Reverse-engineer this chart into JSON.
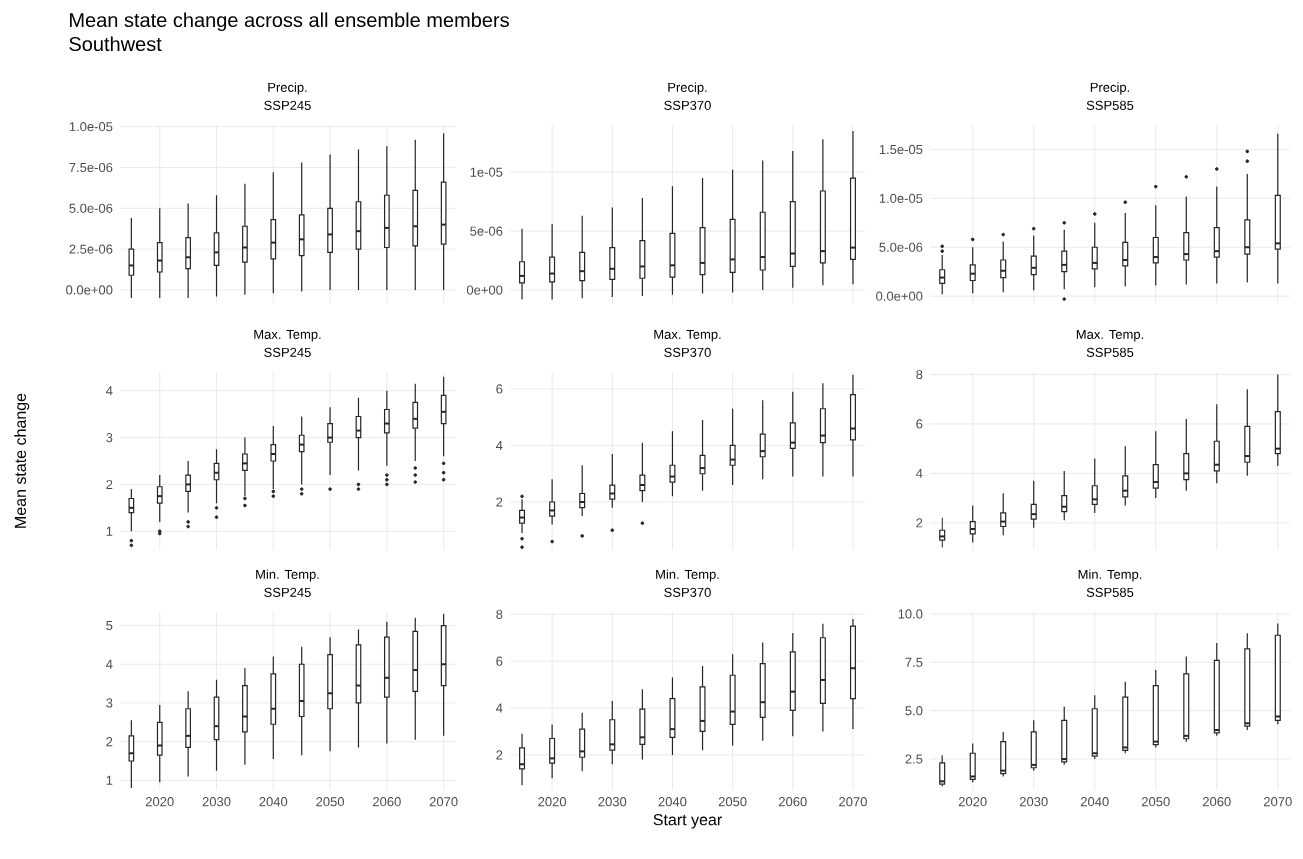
{
  "chart_data": [
    {
      "type": "other",
      "title": "Mean state change across all ensemble members",
      "subtitle": "Southwest"
    },
    {
      "type": "box",
      "title": "Precip.",
      "subtitle": "SSP245",
      "grid": true,
      "tick_labels": "y",
      "x": [
        2015,
        2020,
        2025,
        2030,
        2035,
        2040,
        2045,
        2050,
        2055,
        2060,
        2065,
        2070
      ],
      "xlim": [
        2013,
        2072
      ],
      "xticks": [
        2020,
        2030,
        2040,
        2050,
        2060,
        2070
      ],
      "ylim": [
        -8e-07,
        1.01e-05
      ],
      "yticks": [
        {
          "value": 0,
          "label": "0.0e+00"
        },
        {
          "value": 2.5e-06,
          "label": "2.5e-06"
        },
        {
          "value": 5e-06,
          "label": "5.0e-06"
        },
        {
          "value": 7.5e-06,
          "label": "7.5e-06"
        },
        {
          "value": 1e-05,
          "label": "1.0e-05"
        }
      ],
      "boxes": [
        {
          "low": -5e-07,
          "q1": 9e-07,
          "median": 1.5e-06,
          "q3": 2.5e-06,
          "high": 4.4e-06
        },
        {
          "low": -5e-07,
          "q1": 1.1e-06,
          "median": 1.8e-06,
          "q3": 2.9e-06,
          "high": 5e-06
        },
        {
          "low": -5e-07,
          "q1": 1.3e-06,
          "median": 2e-06,
          "q3": 3.2e-06,
          "high": 5.3e-06
        },
        {
          "low": -4e-07,
          "q1": 1.5e-06,
          "median": 2.3e-06,
          "q3": 3.5e-06,
          "high": 5.8e-06
        },
        {
          "low": -3e-07,
          "q1": 1.7e-06,
          "median": 2.6e-06,
          "q3": 3.9e-06,
          "high": 6.5e-06
        },
        {
          "low": -2e-07,
          "q1": 1.9e-06,
          "median": 2.9e-06,
          "q3": 4.3e-06,
          "high": 7.2e-06
        },
        {
          "low": -1e-07,
          "q1": 2.1e-06,
          "median": 3.1e-06,
          "q3": 4.6e-06,
          "high": 7.8e-06
        },
        {
          "low": 0,
          "q1": 2.3e-06,
          "median": 3.4e-06,
          "q3": 5e-06,
          "high": 8.3e-06
        },
        {
          "low": 0,
          "q1": 2.5e-06,
          "median": 3.6e-06,
          "q3": 5.4e-06,
          "high": 8.6e-06
        },
        {
          "low": 0,
          "q1": 2.6e-06,
          "median": 3.8e-06,
          "q3": 5.8e-06,
          "high": 8.8e-06
        },
        {
          "low": 0,
          "q1": 2.7e-06,
          "median": 3.9e-06,
          "q3": 6.1e-06,
          "high": 9.2e-06
        },
        {
          "low": 0,
          "q1": 2.8e-06,
          "median": 4e-06,
          "q3": 6.6e-06,
          "high": 9.6e-06
        }
      ]
    },
    {
      "type": "box",
      "title": "Precip.",
      "subtitle": "SSP370",
      "grid": true,
      "tick_labels": "y",
      "x": [
        2015,
        2020,
        2025,
        2030,
        2035,
        2040,
        2045,
        2050,
        2055,
        2060,
        2065,
        2070
      ],
      "xlim": [
        2013,
        2072
      ],
      "xticks": [
        2020,
        2030,
        2040,
        2050,
        2060,
        2070
      ],
      "ylim": [
        -1.1e-06,
        1.4e-05
      ],
      "yticks": [
        {
          "value": 0,
          "label": "0e+00"
        },
        {
          "value": 5e-06,
          "label": "5e-06"
        },
        {
          "value": 1e-05,
          "label": "1e-05"
        }
      ],
      "boxes": [
        {
          "low": -8e-07,
          "q1": 6e-07,
          "median": 1.2e-06,
          "q3": 2.4e-06,
          "high": 5.2e-06
        },
        {
          "low": -8e-07,
          "q1": 7e-07,
          "median": 1.4e-06,
          "q3": 2.8e-06,
          "high": 5.6e-06
        },
        {
          "low": -7e-07,
          "q1": 8e-07,
          "median": 1.6e-06,
          "q3": 3.2e-06,
          "high": 6.3e-06
        },
        {
          "low": -6e-07,
          "q1": 9e-07,
          "median": 1.8e-06,
          "q3": 3.6e-06,
          "high": 7e-06
        },
        {
          "low": -5e-07,
          "q1": 1e-06,
          "median": 2e-06,
          "q3": 4.2e-06,
          "high": 7.8e-06
        },
        {
          "low": -4e-07,
          "q1": 1.1e-06,
          "median": 2.1e-06,
          "q3": 4.8e-06,
          "high": 8.8e-06
        },
        {
          "low": -3e-07,
          "q1": 1.3e-06,
          "median": 2.3e-06,
          "q3": 5.3e-06,
          "high": 9.5e-06
        },
        {
          "low": -2e-07,
          "q1": 1.5e-06,
          "median": 2.6e-06,
          "q3": 6e-06,
          "high": 1.02e-05
        },
        {
          "low": 0,
          "q1": 1.7e-06,
          "median": 2.8e-06,
          "q3": 6.6e-06,
          "high": 1.1e-05
        },
        {
          "low": 2e-07,
          "q1": 2e-06,
          "median": 3.1e-06,
          "q3": 7.5e-06,
          "high": 1.18e-05
        },
        {
          "low": 4e-07,
          "q1": 2.3e-06,
          "median": 3.3e-06,
          "q3": 8.4e-06,
          "high": 1.28e-05
        },
        {
          "low": 5e-07,
          "q1": 2.6e-06,
          "median": 3.6e-06,
          "q3": 9.5e-06,
          "high": 1.35e-05
        }
      ]
    },
    {
      "type": "box",
      "title": "Precip.",
      "subtitle": "SSP585",
      "grid": true,
      "tick_labels": "y",
      "x": [
        2015,
        2020,
        2025,
        2030,
        2035,
        2040,
        2045,
        2050,
        2055,
        2060,
        2065,
        2070
      ],
      "xlim": [
        2013,
        2072
      ],
      "xticks": [
        2020,
        2030,
        2040,
        2050,
        2060,
        2070
      ],
      "ylim": [
        -7e-07,
        1.75e-05
      ],
      "yticks": [
        {
          "value": 0,
          "label": "0.0e+00"
        },
        {
          "value": 5e-06,
          "label": "5.0e-06"
        },
        {
          "value": 1e-05,
          "label": "1.0e-05"
        },
        {
          "value": 1.5e-05,
          "label": "1.5e-05"
        }
      ],
      "boxes": [
        {
          "low": 2e-07,
          "q1": 1.3e-06,
          "median": 1.9e-06,
          "q3": 2.7e-06,
          "high": 4.2e-06,
          "outliers": [
            4.6e-06,
            5.1e-06
          ]
        },
        {
          "low": 3e-07,
          "q1": 1.6e-06,
          "median": 2.3e-06,
          "q3": 3.2e-06,
          "high": 5e-06,
          "outliers": [
            5.8e-06
          ]
        },
        {
          "low": 4e-07,
          "q1": 1.9e-06,
          "median": 2.6e-06,
          "q3": 3.7e-06,
          "high": 5.6e-06,
          "outliers": [
            6.3e-06
          ]
        },
        {
          "low": 6e-07,
          "q1": 2.2e-06,
          "median": 2.9e-06,
          "q3": 4.1e-06,
          "high": 6.2e-06,
          "outliers": [
            6.9e-06
          ]
        },
        {
          "low": 7e-07,
          "q1": 2.5e-06,
          "median": 3.2e-06,
          "q3": 4.6e-06,
          "high": 6.8e-06,
          "outliers": [
            -3e-07,
            7.5e-06
          ]
        },
        {
          "low": 9e-07,
          "q1": 2.8e-06,
          "median": 3.4e-06,
          "q3": 5e-06,
          "high": 7.5e-06,
          "outliers": [
            8.4e-06
          ]
        },
        {
          "low": 1e-06,
          "q1": 3.1e-06,
          "median": 3.7e-06,
          "q3": 5.5e-06,
          "high": 8.5e-06,
          "outliers": [
            9.6e-06
          ]
        },
        {
          "low": 1.1e-06,
          "q1": 3.4e-06,
          "median": 4e-06,
          "q3": 6e-06,
          "high": 9.3e-06,
          "outliers": [
            1.12e-05
          ]
        },
        {
          "low": 1.2e-06,
          "q1": 3.7e-06,
          "median": 4.3e-06,
          "q3": 6.5e-06,
          "high": 1.02e-05,
          "outliers": [
            1.22e-05
          ]
        },
        {
          "low": 1.3e-06,
          "q1": 4e-06,
          "median": 4.6e-06,
          "q3": 7e-06,
          "high": 1.12e-05,
          "outliers": [
            1.3e-05
          ]
        },
        {
          "low": 1.4e-06,
          "q1": 4.3e-06,
          "median": 5e-06,
          "q3": 7.8e-06,
          "high": 1.25e-05,
          "outliers": [
            1.38e-05,
            1.48e-05
          ]
        },
        {
          "low": 1.3e-06,
          "q1": 4.8e-06,
          "median": 5.4e-06,
          "q3": 1.03e-05,
          "high": 1.66e-05
        }
      ]
    },
    {
      "type": "box",
      "title": "Max. Temp.",
      "subtitle": "SSP245",
      "ylabel": "Mean state change",
      "grid": true,
      "tick_labels": "y",
      "x": [
        2015,
        2020,
        2025,
        2030,
        2035,
        2040,
        2045,
        2050,
        2055,
        2060,
        2065,
        2070
      ],
      "xlim": [
        2013,
        2072
      ],
      "xticks": [
        2020,
        2030,
        2040,
        2050,
        2060,
        2070
      ],
      "ylim": [
        0.6,
        4.4
      ],
      "yticks": [
        1,
        2,
        3,
        4
      ],
      "boxes": [
        {
          "low": 1,
          "q1": 1.4,
          "median": 1.5,
          "q3": 1.7,
          "high": 1.9,
          "outliers": [
            0.7,
            0.8
          ]
        },
        {
          "low": 1.2,
          "q1": 1.6,
          "median": 1.75,
          "q3": 1.95,
          "high": 2.2,
          "outliers": [
            0.95,
            1
          ]
        },
        {
          "low": 1.4,
          "q1": 1.85,
          "median": 2,
          "q3": 2.2,
          "high": 2.5,
          "outliers": [
            1.1,
            1.2
          ]
        },
        {
          "low": 1.6,
          "q1": 2.1,
          "median": 2.25,
          "q3": 2.45,
          "high": 2.75,
          "outliers": [
            1.3,
            1.5
          ]
        },
        {
          "low": 1.75,
          "q1": 2.3,
          "median": 2.45,
          "q3": 2.65,
          "high": 3,
          "outliers": [
            1.55,
            1.7
          ]
        },
        {
          "low": 1.9,
          "q1": 2.5,
          "median": 2.65,
          "q3": 2.85,
          "high": 3.25,
          "outliers": [
            1.75,
            1.85
          ]
        },
        {
          "low": 2,
          "q1": 2.7,
          "median": 2.85,
          "q3": 3.05,
          "high": 3.45,
          "outliers": [
            1.8,
            1.9
          ]
        },
        {
          "low": 2.2,
          "q1": 2.9,
          "median": 3,
          "q3": 3.3,
          "high": 3.65,
          "outliers": [
            1.9
          ]
        },
        {
          "low": 2.3,
          "q1": 3,
          "median": 3.15,
          "q3": 3.45,
          "high": 3.85,
          "outliers": [
            1.9,
            2
          ]
        },
        {
          "low": 2.4,
          "q1": 3.1,
          "median": 3.3,
          "q3": 3.6,
          "high": 4,
          "outliers": [
            2,
            2.1,
            2.2
          ]
        },
        {
          "low": 2.5,
          "q1": 3.2,
          "median": 3.4,
          "q3": 3.75,
          "high": 4.15,
          "outliers": [
            2.05,
            2.2,
            2.35
          ]
        },
        {
          "low": 2.6,
          "q1": 3.3,
          "median": 3.55,
          "q3": 3.9,
          "high": 4.3,
          "outliers": [
            2.1,
            2.25,
            2.45
          ]
        }
      ]
    },
    {
      "type": "box",
      "title": "Max. Temp.",
      "subtitle": "SSP370",
      "grid": true,
      "tick_labels": "y",
      "x": [
        2015,
        2020,
        2025,
        2030,
        2035,
        2040,
        2045,
        2050,
        2055,
        2060,
        2065,
        2070
      ],
      "xlim": [
        2013,
        2072
      ],
      "xticks": [
        2020,
        2030,
        2040,
        2050,
        2060,
        2070
      ],
      "ylim": [
        0.3,
        6.6
      ],
      "yticks": [
        2,
        4,
        6
      ],
      "boxes": [
        {
          "low": 0.9,
          "q1": 1.25,
          "median": 1.45,
          "q3": 1.7,
          "high": 2.1,
          "outliers": [
            0.4,
            0.7,
            2.2
          ]
        },
        {
          "low": 1.2,
          "q1": 1.5,
          "median": 1.7,
          "q3": 2,
          "high": 2.8,
          "outliers": [
            0.6
          ]
        },
        {
          "low": 1.5,
          "q1": 1.8,
          "median": 2,
          "q3": 2.3,
          "high": 3.3,
          "outliers": [
            0.8
          ]
        },
        {
          "low": 1.8,
          "q1": 2.1,
          "median": 2.3,
          "q3": 2.6,
          "high": 3.7,
          "outliers": [
            1
          ]
        },
        {
          "low": 2,
          "q1": 2.4,
          "median": 2.6,
          "q3": 2.95,
          "high": 4.1,
          "outliers": [
            1.25
          ]
        },
        {
          "low": 2.2,
          "q1": 2.7,
          "median": 2.9,
          "q3": 3.3,
          "high": 4.5
        },
        {
          "low": 2.4,
          "q1": 3,
          "median": 3.2,
          "q3": 3.65,
          "high": 4.9
        },
        {
          "low": 2.6,
          "q1": 3.3,
          "median": 3.5,
          "q3": 4,
          "high": 5.3
        },
        {
          "low": 2.8,
          "q1": 3.6,
          "median": 3.8,
          "q3": 4.4,
          "high": 5.6
        },
        {
          "low": 2.9,
          "q1": 3.9,
          "median": 4.1,
          "q3": 4.8,
          "high": 5.9
        },
        {
          "low": 2.9,
          "q1": 4.1,
          "median": 4.35,
          "q3": 5.3,
          "high": 6.2
        },
        {
          "low": 2.9,
          "q1": 4.2,
          "median": 4.6,
          "q3": 5.8,
          "high": 6.5
        }
      ]
    },
    {
      "type": "box",
      "title": "Max. Temp.",
      "subtitle": "SSP585",
      "grid": true,
      "tick_labels": "y",
      "x": [
        2015,
        2020,
        2025,
        2030,
        2035,
        2040,
        2045,
        2050,
        2055,
        2060,
        2065,
        2070
      ],
      "xlim": [
        2013,
        2072
      ],
      "xticks": [
        2020,
        2030,
        2040,
        2050,
        2060,
        2070
      ],
      "ylim": [
        0.9,
        8.1
      ],
      "yticks": [
        2,
        4,
        6,
        8
      ],
      "boxes": [
        {
          "low": 1,
          "q1": 1.3,
          "median": 1.45,
          "q3": 1.7,
          "high": 2.2
        },
        {
          "low": 1.2,
          "q1": 1.55,
          "median": 1.75,
          "q3": 2.05,
          "high": 2.7
        },
        {
          "low": 1.5,
          "q1": 1.85,
          "median": 2.05,
          "q3": 2.4,
          "high": 3.2
        },
        {
          "low": 1.8,
          "q1": 2.15,
          "median": 2.35,
          "q3": 2.75,
          "high": 3.7
        },
        {
          "low": 2.1,
          "q1": 2.45,
          "median": 2.65,
          "q3": 3.1,
          "high": 4.1
        },
        {
          "low": 2.4,
          "q1": 2.75,
          "median": 2.95,
          "q3": 3.5,
          "high": 4.6
        },
        {
          "low": 2.7,
          "q1": 3.05,
          "median": 3.3,
          "q3": 3.9,
          "high": 5.1
        },
        {
          "low": 3,
          "q1": 3.4,
          "median": 3.65,
          "q3": 4.35,
          "high": 5.7
        },
        {
          "low": 3.3,
          "q1": 3.75,
          "median": 4,
          "q3": 4.8,
          "high": 6.2
        },
        {
          "low": 3.6,
          "q1": 4.1,
          "median": 4.35,
          "q3": 5.3,
          "high": 6.8
        },
        {
          "low": 3.9,
          "q1": 4.45,
          "median": 4.7,
          "q3": 5.9,
          "high": 7.4
        },
        {
          "low": 4.3,
          "q1": 4.8,
          "median": 5,
          "q3": 6.5,
          "high": 8
        }
      ]
    },
    {
      "type": "box",
      "title": "Min. Temp.",
      "subtitle": "SSP245",
      "grid": true,
      "x": [
        2015,
        2020,
        2025,
        2030,
        2035,
        2040,
        2045,
        2050,
        2055,
        2060,
        2065,
        2070
      ],
      "xlim": [
        2013,
        2072
      ],
      "xticks": [
        2020,
        2030,
        2040,
        2050,
        2060,
        2070
      ],
      "ylim": [
        0.75,
        5.35
      ],
      "yticks": [
        1,
        2,
        3,
        4,
        5
      ],
      "boxes": [
        {
          "low": 0.8,
          "q1": 1.5,
          "median": 1.7,
          "q3": 2.15,
          "high": 2.55
        },
        {
          "low": 0.95,
          "q1": 1.65,
          "median": 1.9,
          "q3": 2.5,
          "high": 2.95
        },
        {
          "low": 1.1,
          "q1": 1.85,
          "median": 2.15,
          "q3": 2.85,
          "high": 3.3
        },
        {
          "low": 1.25,
          "q1": 2.05,
          "median": 2.4,
          "q3": 3.15,
          "high": 3.6
        },
        {
          "low": 1.4,
          "q1": 2.25,
          "median": 2.65,
          "q3": 3.45,
          "high": 3.9
        },
        {
          "low": 1.55,
          "q1": 2.45,
          "median": 2.85,
          "q3": 3.75,
          "high": 4.2
        },
        {
          "low": 1.65,
          "q1": 2.65,
          "median": 3.05,
          "q3": 4,
          "high": 4.45
        },
        {
          "low": 1.75,
          "q1": 2.85,
          "median": 3.25,
          "q3": 4.25,
          "high": 4.7
        },
        {
          "low": 1.85,
          "q1": 3,
          "median": 3.45,
          "q3": 4.5,
          "high": 4.9
        },
        {
          "low": 1.95,
          "q1": 3.15,
          "median": 3.65,
          "q3": 4.7,
          "high": 5.1
        },
        {
          "low": 2.05,
          "q1": 3.3,
          "median": 3.85,
          "q3": 4.85,
          "high": 5.2
        },
        {
          "low": 2.15,
          "q1": 3.45,
          "median": 4,
          "q3": 5,
          "high": 5.3
        }
      ]
    },
    {
      "type": "box",
      "title": "Min. Temp.",
      "subtitle": "SSP370",
      "xlabel": "Start year",
      "grid": true,
      "x": [
        2015,
        2020,
        2025,
        2030,
        2035,
        2040,
        2045,
        2050,
        2055,
        2060,
        2065,
        2070
      ],
      "xlim": [
        2013,
        2072
      ],
      "xticks": [
        2020,
        2030,
        2040,
        2050,
        2060,
        2070
      ],
      "ylim": [
        0.5,
        8.1
      ],
      "yticks": [
        2,
        4,
        6,
        8
      ],
      "boxes": [
        {
          "low": 0.7,
          "q1": 1.4,
          "median": 1.6,
          "q3": 2.3,
          "high": 2.9
        },
        {
          "low": 1,
          "q1": 1.65,
          "median": 1.85,
          "q3": 2.7,
          "high": 3.3
        },
        {
          "low": 1.3,
          "q1": 1.9,
          "median": 2.15,
          "q3": 3.1,
          "high": 3.8
        },
        {
          "low": 1.6,
          "q1": 2.2,
          "median": 2.45,
          "q3": 3.5,
          "high": 4.3
        },
        {
          "low": 1.8,
          "q1": 2.45,
          "median": 2.75,
          "q3": 3.95,
          "high": 4.8
        },
        {
          "low": 2,
          "q1": 2.75,
          "median": 3.1,
          "q3": 4.4,
          "high": 5.3
        },
        {
          "low": 2.2,
          "q1": 3,
          "median": 3.45,
          "q3": 4.9,
          "high": 5.8
        },
        {
          "low": 2.4,
          "q1": 3.3,
          "median": 3.85,
          "q3": 5.4,
          "high": 6.3
        },
        {
          "low": 2.6,
          "q1": 3.6,
          "median": 4.25,
          "q3": 5.9,
          "high": 6.8
        },
        {
          "low": 2.8,
          "q1": 3.9,
          "median": 4.7,
          "q3": 6.4,
          "high": 7.2
        },
        {
          "low": 3,
          "q1": 4.2,
          "median": 5.2,
          "q3": 7,
          "high": 7.6
        },
        {
          "low": 3.1,
          "q1": 4.4,
          "median": 5.7,
          "q3": 7.5,
          "high": 7.8
        }
      ]
    },
    {
      "type": "box",
      "title": "Min. Temp.",
      "subtitle": "SSP585",
      "grid": true,
      "x": [
        2015,
        2020,
        2025,
        2030,
        2035,
        2040,
        2045,
        2050,
        2055,
        2060,
        2065,
        2070
      ],
      "xlim": [
        2013,
        2072
      ],
      "xticks": [
        2020,
        2030,
        2040,
        2050,
        2060,
        2070
      ],
      "ylim": [
        0.9,
        10.1
      ],
      "yticks": [
        2.5,
        {
          "value": 5,
          "label": "5.0"
        },
        7.5,
        {
          "value": 10,
          "label": "10.0"
        }
      ],
      "boxes": [
        {
          "low": 1.1,
          "q1": 1.2,
          "median": 1.35,
          "q3": 2.3,
          "high": 2.7
        },
        {
          "low": 1.3,
          "q1": 1.45,
          "median": 1.6,
          "q3": 2.8,
          "high": 3.3
        },
        {
          "low": 1.6,
          "q1": 1.75,
          "median": 1.9,
          "q3": 3.4,
          "high": 3.9
        },
        {
          "low": 1.9,
          "q1": 2.05,
          "median": 2.2,
          "q3": 3.9,
          "high": 4.5
        },
        {
          "low": 2.2,
          "q1": 2.35,
          "median": 2.5,
          "q3": 4.5,
          "high": 5.2
        },
        {
          "low": 2.5,
          "q1": 2.65,
          "median": 2.8,
          "q3": 5.1,
          "high": 5.8
        },
        {
          "low": 2.8,
          "q1": 2.95,
          "median": 3.1,
          "q3": 5.7,
          "high": 6.5
        },
        {
          "low": 3.1,
          "q1": 3.25,
          "median": 3.4,
          "q3": 6.3,
          "high": 7.1
        },
        {
          "low": 3.4,
          "q1": 3.55,
          "median": 3.7,
          "q3": 6.9,
          "high": 7.8
        },
        {
          "low": 3.7,
          "q1": 3.85,
          "median": 4,
          "q3": 7.6,
          "high": 8.5
        },
        {
          "low": 4,
          "q1": 4.2,
          "median": 4.35,
          "q3": 8.2,
          "high": 9
        },
        {
          "low": 4.3,
          "q1": 4.5,
          "median": 4.7,
          "q3": 8.9,
          "high": 9.5
        }
      ]
    }
  ]
}
